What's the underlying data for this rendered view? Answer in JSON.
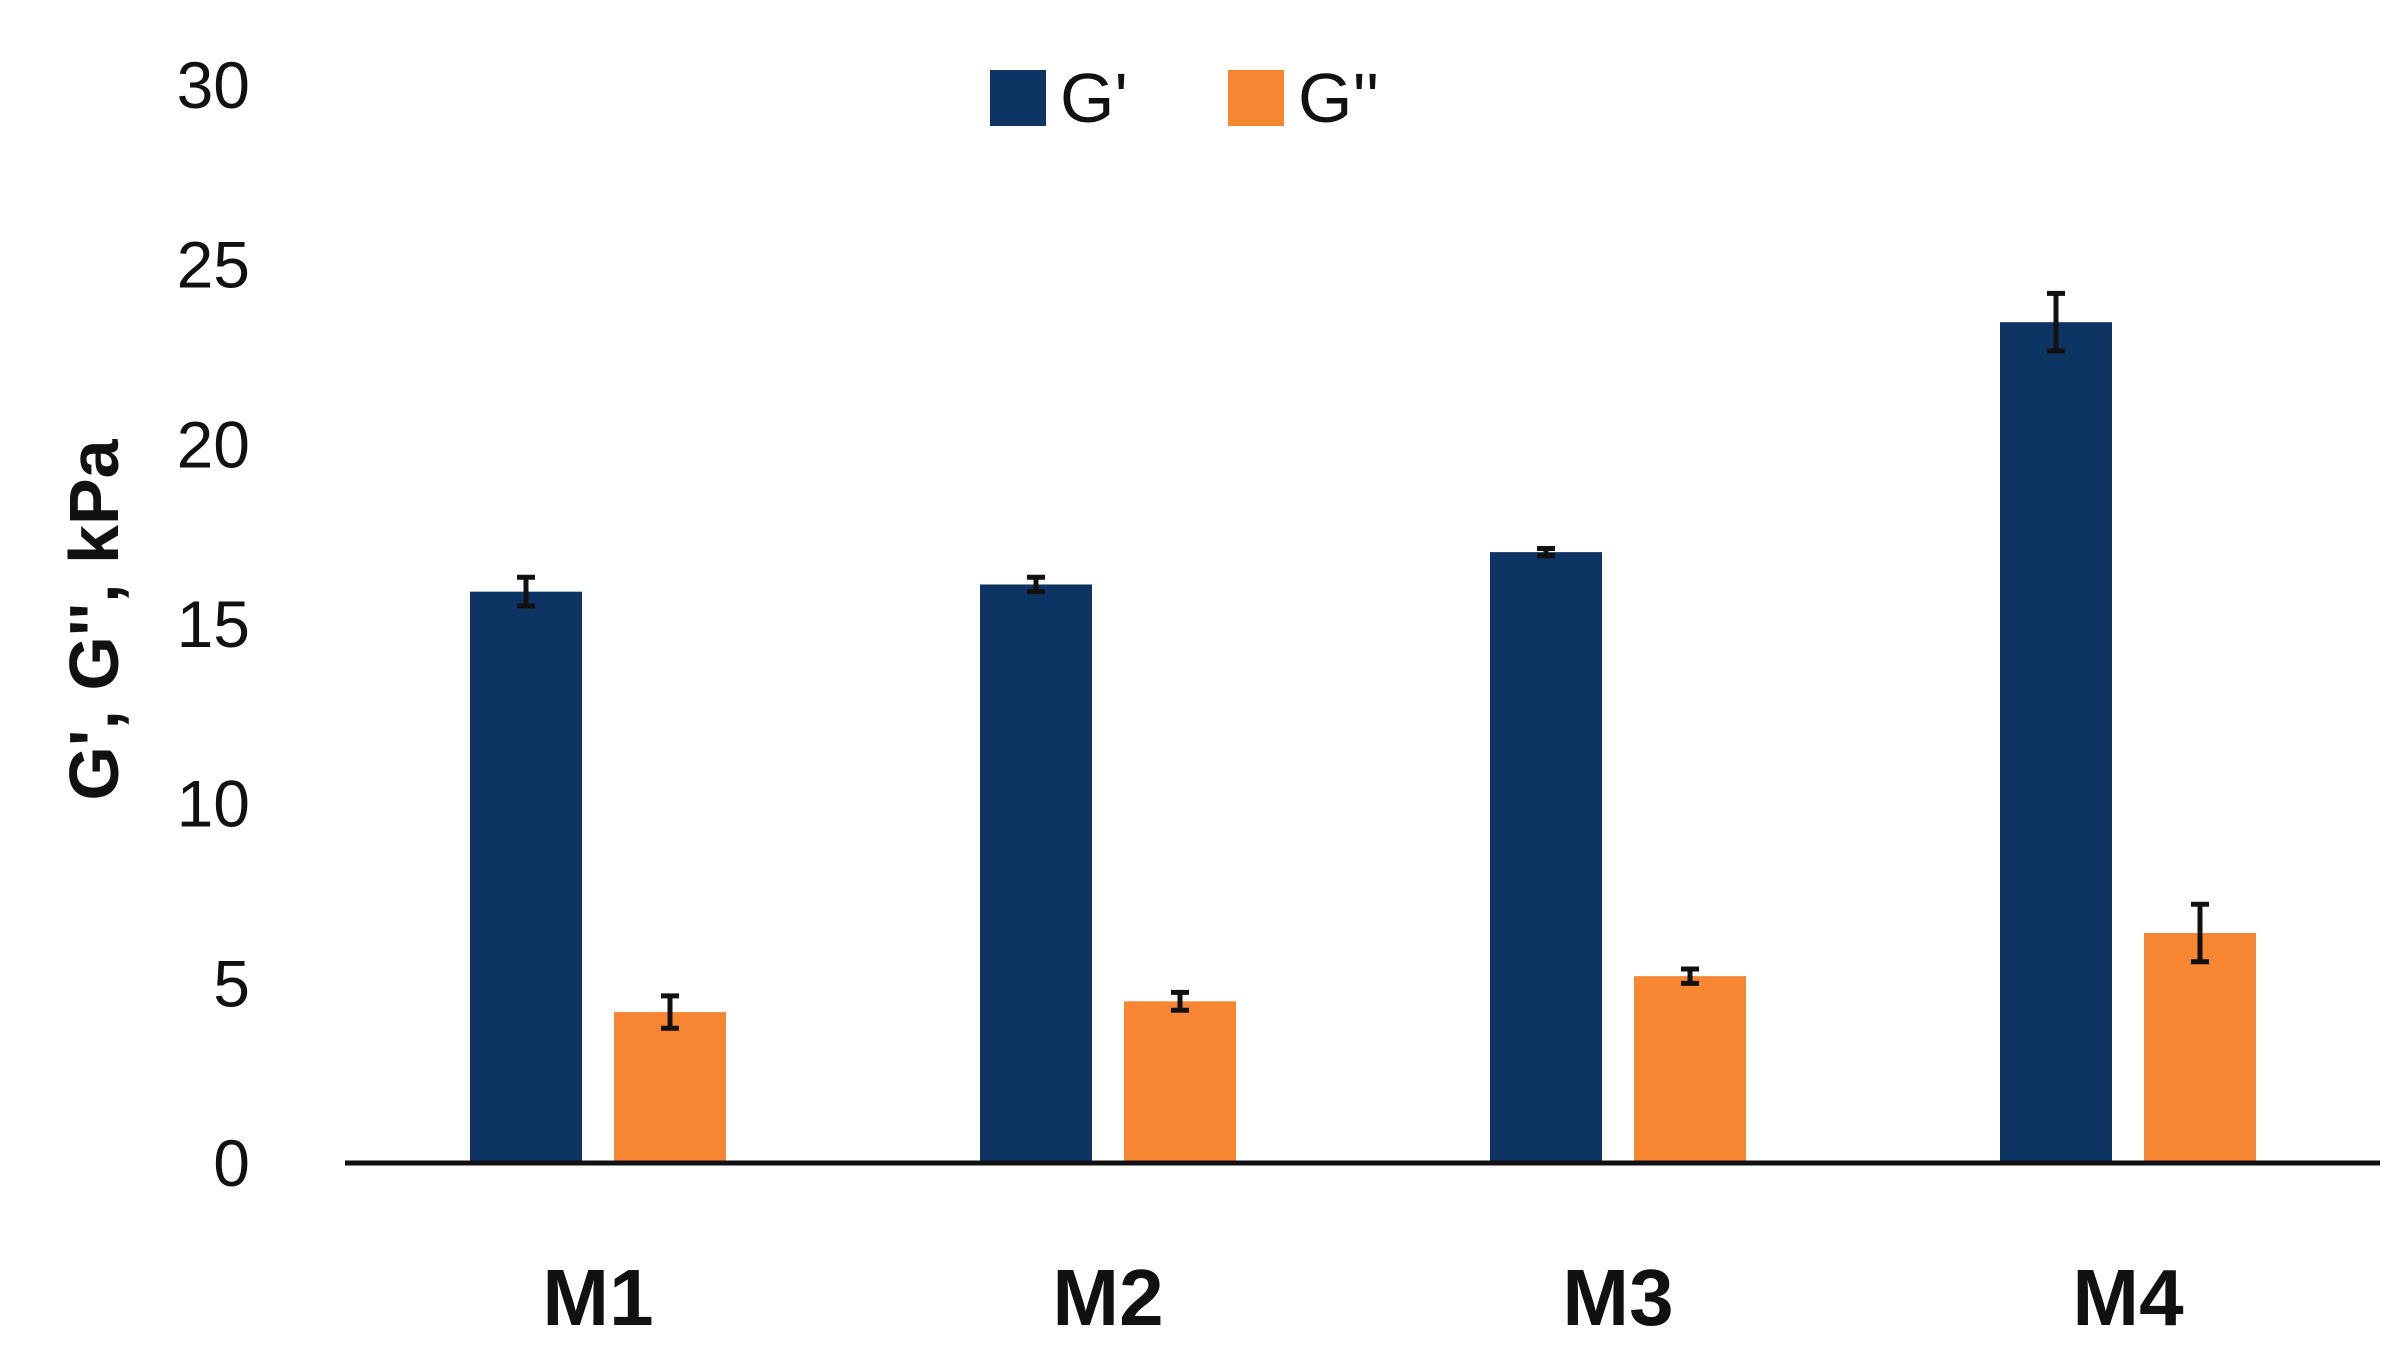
{
  "chart_data": {
    "type": "bar",
    "title": "",
    "xlabel": "",
    "ylabel": "G', G'', kPa",
    "ylim": [
      0,
      30
    ],
    "yticks": [
      0,
      5,
      10,
      15,
      20,
      25,
      30
    ],
    "categories": [
      "M1",
      "M2",
      "M3",
      "M4"
    ],
    "grid": false,
    "legend_position": "top-center",
    "error_bars": true,
    "series": [
      {
        "name": "G'",
        "color": "#0e3463",
        "values": [
          15.9,
          16.1,
          17.0,
          23.4
        ],
        "errors": [
          0.4,
          0.2,
          0.1,
          0.8
        ]
      },
      {
        "name": "G''",
        "color": "#f68632",
        "values": [
          4.2,
          4.5,
          5.2,
          6.4
        ],
        "errors": [
          0.45,
          0.25,
          0.2,
          0.8
        ]
      }
    ]
  }
}
